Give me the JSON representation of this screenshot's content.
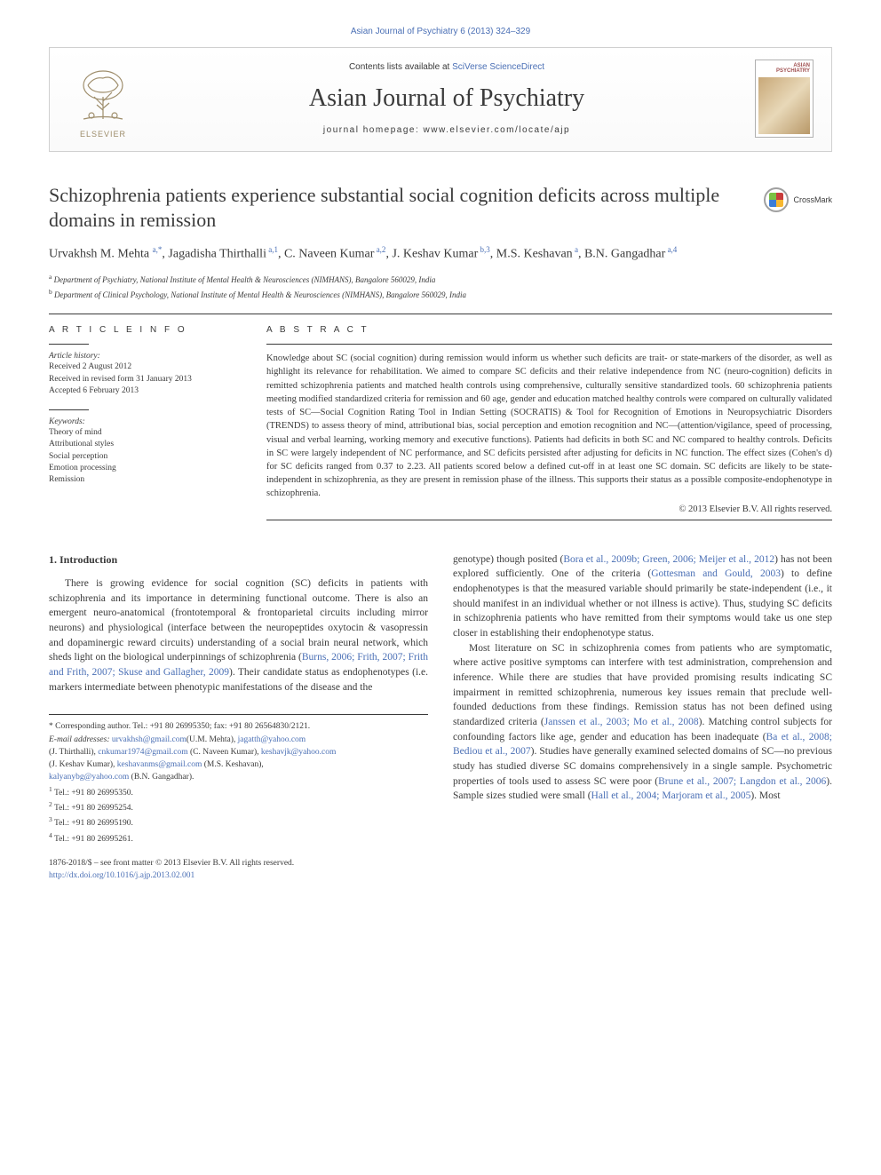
{
  "top_link": "Asian Journal of Psychiatry 6 (2013) 324–329",
  "header": {
    "contents_prefix": "Contents lists available at ",
    "contents_link": "SciVerse ScienceDirect",
    "journal_title": "Asian Journal of Psychiatry",
    "homepage": "journal homepage: www.elsevier.com/locate/ajp",
    "elsevier_label": "ELSEVIER",
    "cover_label": "ASIAN PSYCHIATRY"
  },
  "article": {
    "title": "Schizophrenia patients experience substantial social cognition deficits across multiple domains in remission",
    "crossmark": "CrossMark",
    "authors_html": "Urvakhsh M. Mehta <sup>a,*</sup>, Jagadisha Thirthalli<sup> a,1</sup>, C. Naveen Kumar<sup> a,2</sup>, J. Keshav Kumar<sup> b,3</sup>, M.S. Keshavan<sup> a</sup>, B.N. Gangadhar<sup> a,4</sup>",
    "affiliations": [
      {
        "sup": "a",
        "text": "Department of Psychiatry, National Institute of Mental Health & Neurosciences (NIMHANS), Bangalore 560029, India"
      },
      {
        "sup": "b",
        "text": "Department of Clinical Psychology, National Institute of Mental Health & Neurosciences (NIMHANS), Bangalore 560029, India"
      }
    ]
  },
  "info": {
    "heading": "A R T I C L E   I N F O",
    "history_label": "Article history:",
    "history": "Received 2 August 2012\nReceived in revised form 31 January 2013\nAccepted 6 February 2013",
    "keywords_label": "Keywords:",
    "keywords": "Theory of mind\nAttributional styles\nSocial perception\nEmotion processing\nRemission"
  },
  "abstract": {
    "heading": "A B S T R A C T",
    "text": "Knowledge about SC (social cognition) during remission would inform us whether such deficits are trait- or state-markers of the disorder, as well as highlight its relevance for rehabilitation. We aimed to compare SC deficits and their relative independence from NC (neuro-cognition) deficits in remitted schizophrenia patients and matched health controls using comprehensive, culturally sensitive standardized tools. 60 schizophrenia patients meeting modified standardized criteria for remission and 60 age, gender and education matched healthy controls were compared on culturally validated tests of SC—Social Cognition Rating Tool in Indian Setting (SOCRATIS) & Tool for Recognition of Emotions in Neuropsychiatric Disorders (TRENDS) to assess theory of mind, attributional bias, social perception and emotion recognition and NC—(attention/vigilance, speed of processing, visual and verbal learning, working memory and executive functions). Patients had deficits in both SC and NC compared to healthy controls. Deficits in SC were largely independent of NC performance, and SC deficits persisted after adjusting for deficits in NC function. The effect sizes (Cohen's d) for SC deficits ranged from 0.37 to 2.23. All patients scored below a defined cut-off in at least one SC domain. SC deficits are likely to be state-independent in schizophrenia, as they are present in remission phase of the illness. This supports their status as a possible composite-endophenotype in schizophrenia.",
    "copyright": "© 2013 Elsevier B.V. All rights reserved."
  },
  "body": {
    "section1_heading": "1. Introduction",
    "left_p1_pre": "There is growing evidence for social cognition (SC) deficits in patients with schizophrenia and its importance in determining functional outcome. There is also an emergent neuro-anatomical (frontotemporal & frontoparietal circuits including mirror neurons) and physiological (interface between the neuropeptides oxytocin & vasopressin and dopaminergic reward circuits) understanding of a social brain neural network, which sheds light on the biological underpinnings of schizophrenia (",
    "left_p1_ref": "Burns, 2006; Frith, 2007; Frith and Frith, 2007; Skuse and Gallagher, 2009",
    "left_p1_post": "). Their candidate status as endophenotypes (i.e. markers intermediate between phenotypic manifestations of the disease and the",
    "right_p1_a": "genotype) though posited (",
    "right_p1_ref1": "Bora et al., 2009b; Green, 2006; Meijer et al., 2012",
    "right_p1_b": ") has not been explored sufficiently. One of the criteria (",
    "right_p1_ref2": "Gottesman and Gould, 2003",
    "right_p1_c": ") to define endophenotypes is that the measured variable should primarily be state-independent (i.e., it should manifest in an individual whether or not illness is active). Thus, studying SC deficits in schizophrenia patients who have remitted from their symptoms would take us one step closer in establishing their endophenotype status.",
    "right_p2_a": "Most literature on SC in schizophrenia comes from patients who are symptomatic, where active positive symptoms can interfere with test administration, comprehension and inference. While there are studies that have provided promising results indicating SC impairment in remitted schizophrenia, numerous key issues remain that preclude well-founded deductions from these findings. Remission status has not been defined using standardized criteria (",
    "right_p2_ref1": "Janssen et al., 2003; Mo et al., 2008",
    "right_p2_b": "). Matching control subjects for confounding factors like age, gender and education has been inadequate (",
    "right_p2_ref2": "Ba et al., 2008; Bediou et al., 2007",
    "right_p2_c": "). Studies have generally examined selected domains of SC—no previous study has studied diverse SC domains comprehensively in a single sample. Psychometric properties of tools used to assess SC were poor (",
    "right_p2_ref3": "Brune et al., 2007; Langdon et al., 2006",
    "right_p2_d": "). Sample sizes studied were small (",
    "right_p2_ref4": "Hall et al., 2004; Marjoram et al., 2005",
    "right_p2_e": "). Most"
  },
  "footnotes": {
    "corr": "* Corresponding author. Tel.: +91 80 26995350; fax: +91 80 26564830/2121.",
    "email_label": "E-mail addresses:",
    "emails": [
      {
        "addr": "urvakhsh@gmail.com",
        "who": "(U.M. Mehta), "
      },
      {
        "addr": "jagatth@yahoo.com",
        "who": ""
      }
    ],
    "email_line2": [
      {
        "who_pre": "(J. Thirthalli), ",
        "addr": "cnkumar1974@gmail.com",
        "who": " (C. Naveen Kumar), "
      },
      {
        "who_pre": "",
        "addr": "keshavjk@yahoo.com",
        "who": ""
      }
    ],
    "email_line3": [
      {
        "who_pre": "(J. Keshav Kumar), ",
        "addr": "keshavanms@gmail.com",
        "who": " (M.S. Keshavan),"
      }
    ],
    "email_line4": [
      {
        "who_pre": "",
        "addr": "kalyanybg@yahoo.com",
        "who": " (B.N. Gangadhar)."
      }
    ],
    "tels": [
      {
        "sup": "1",
        "text": "Tel.: +91 80 26995350."
      },
      {
        "sup": "2",
        "text": "Tel.: +91 80 26995254."
      },
      {
        "sup": "3",
        "text": "Tel.: +91 80 26995190."
      },
      {
        "sup": "4",
        "text": "Tel.: +91 80 26995261."
      }
    ]
  },
  "bottom": {
    "issn": "1876-2018/$ – see front matter © 2013 Elsevier B.V. All rights reserved.",
    "doi": "http://dx.doi.org/10.1016/j.ajp.2013.02.001"
  },
  "colors": {
    "link": "#4a6fb5",
    "text": "#3a3a3a",
    "elsevier": "#9e8d6b"
  }
}
